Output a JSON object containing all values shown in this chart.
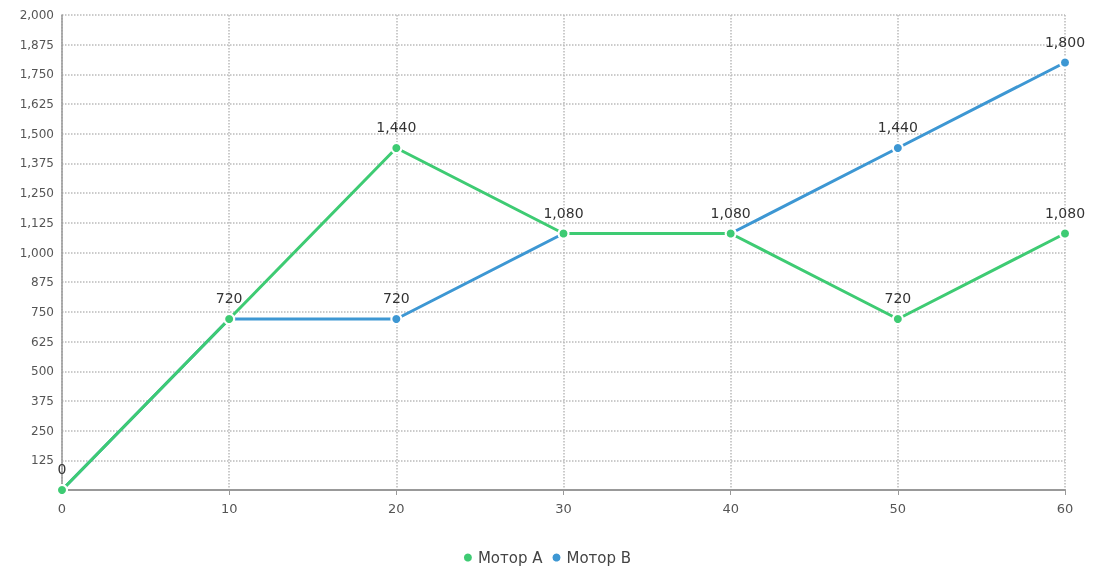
{
  "chart_data": {
    "type": "line",
    "x": [
      0,
      10,
      20,
      30,
      40,
      50,
      60
    ],
    "series": [
      {
        "name": "Мотор A",
        "color": "#3ecb73",
        "values": [
          0,
          720,
          1440,
          1080,
          1080,
          720,
          1080
        ],
        "value_labels": [
          "0",
          "720",
          "1,440",
          "1,080",
          "1,080",
          "720",
          "1,080"
        ]
      },
      {
        "name": "Мотор B",
        "color": "#3d97d3",
        "values": [
          0,
          720,
          720,
          1080,
          1080,
          1440,
          1800
        ],
        "value_labels": [
          null,
          null,
          "720",
          null,
          null,
          "1,440",
          "1,800"
        ]
      }
    ],
    "xlim": [
      0,
      60
    ],
    "xticks": [
      0,
      10,
      20,
      30,
      40,
      50,
      60
    ],
    "ylim": [
      0,
      2000
    ],
    "yticks": [
      {
        "value": 0,
        "label": null
      },
      125,
      250,
      375,
      500,
      625,
      750,
      875,
      {
        "value": 1000,
        "label": "1,000"
      },
      {
        "value": 1125,
        "label": "1,125"
      },
      {
        "value": 1250,
        "label": "1,250"
      },
      {
        "value": 1375,
        "label": "1,375"
      },
      {
        "value": 1500,
        "label": "1,500"
      },
      {
        "value": 1625,
        "label": "1,625"
      },
      {
        "value": 1750,
        "label": "1,750"
      },
      {
        "value": 1875,
        "label": "1,875"
      },
      {
        "value": 2000,
        "label": "2,000"
      }
    ],
    "grid": true,
    "legend": "bottom",
    "marker": "circle",
    "line_style": "solid"
  }
}
